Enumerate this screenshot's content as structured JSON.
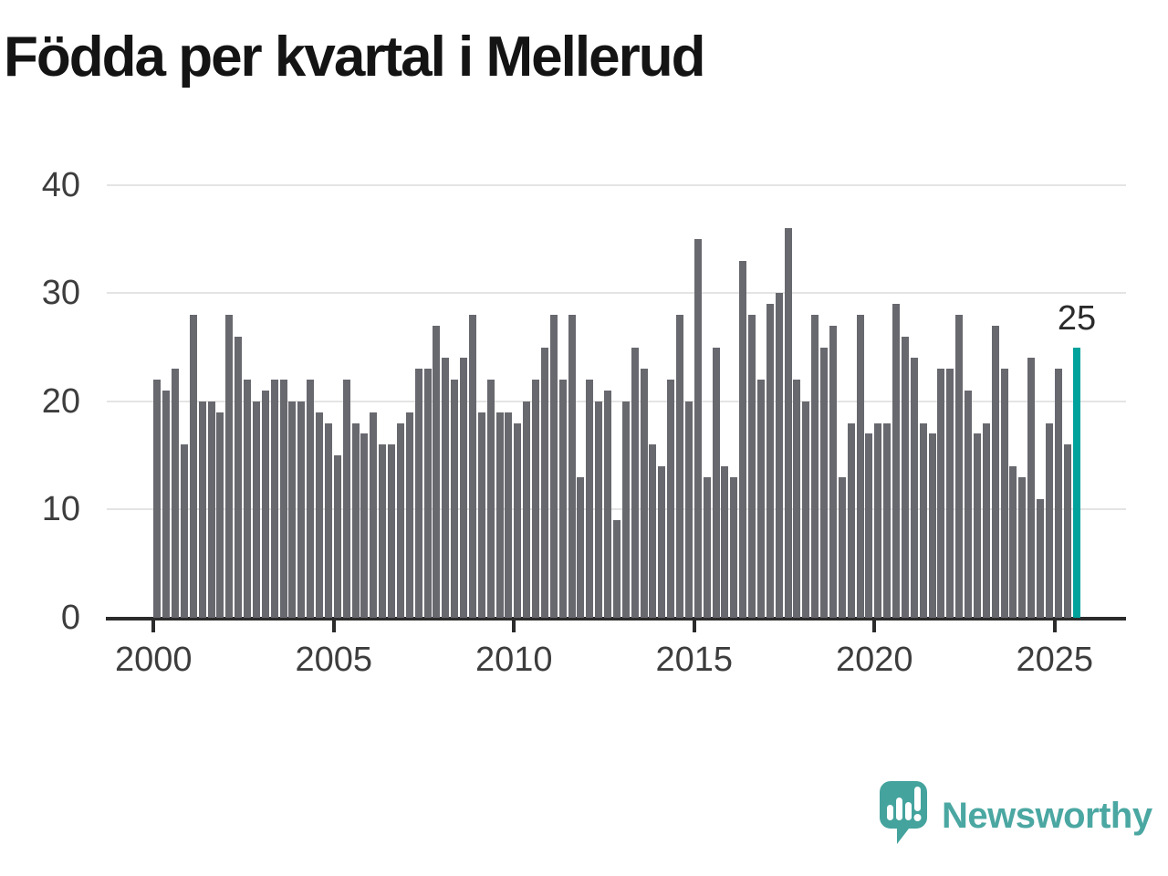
{
  "title": "Födda per kvartal i Mellerud",
  "annotation": {
    "label": "25"
  },
  "y_axis": {
    "ticks": [
      40,
      30,
      20,
      10,
      0
    ]
  },
  "x_axis": {
    "ticks": [
      2000,
      2005,
      2010,
      2015,
      2020,
      2025
    ]
  },
  "branding": {
    "name": "Newsworthy",
    "color": "#4ba7a2"
  },
  "chart_data": {
    "type": "bar",
    "title": "Födda per kvartal i Mellerud",
    "frequency": "quarterly",
    "start": "2000-Q1",
    "end": "2025-Q3",
    "xlabel": "",
    "ylabel": "",
    "ylim": [
      0,
      40
    ],
    "grid": true,
    "bar_color": "#68686f",
    "highlight_color": "#00a29b",
    "highlighted_bar": {
      "index": 102,
      "period": "2025-Q3",
      "value": 25,
      "label": "25"
    },
    "values": [
      22,
      21,
      23,
      16,
      28,
      20,
      20,
      19,
      28,
      26,
      22,
      20,
      21,
      22,
      22,
      20,
      20,
      22,
      19,
      18,
      15,
      22,
      18,
      17,
      19,
      16,
      16,
      18,
      19,
      23,
      23,
      27,
      24,
      22,
      24,
      28,
      19,
      22,
      19,
      19,
      18,
      20,
      22,
      25,
      28,
      22,
      28,
      13,
      22,
      20,
      21,
      9,
      20,
      25,
      23,
      16,
      14,
      22,
      28,
      20,
      35,
      13,
      25,
      14,
      13,
      33,
      28,
      22,
      29,
      30,
      36,
      22,
      20,
      28,
      25,
      27,
      13,
      18,
      28,
      17,
      18,
      18,
      29,
      26,
      24,
      18,
      17,
      23,
      23,
      28,
      21,
      17,
      18,
      27,
      23,
      14,
      13,
      24,
      11,
      18,
      23,
      16,
      25
    ],
    "years": [
      2000,
      2001,
      2002,
      2003,
      2004,
      2005,
      2006,
      2007,
      2008,
      2009,
      2010,
      2011,
      2012,
      2013,
      2014,
      2015,
      2016,
      2017,
      2018,
      2019,
      2020,
      2021,
      2022,
      2023,
      2024,
      2025
    ]
  }
}
